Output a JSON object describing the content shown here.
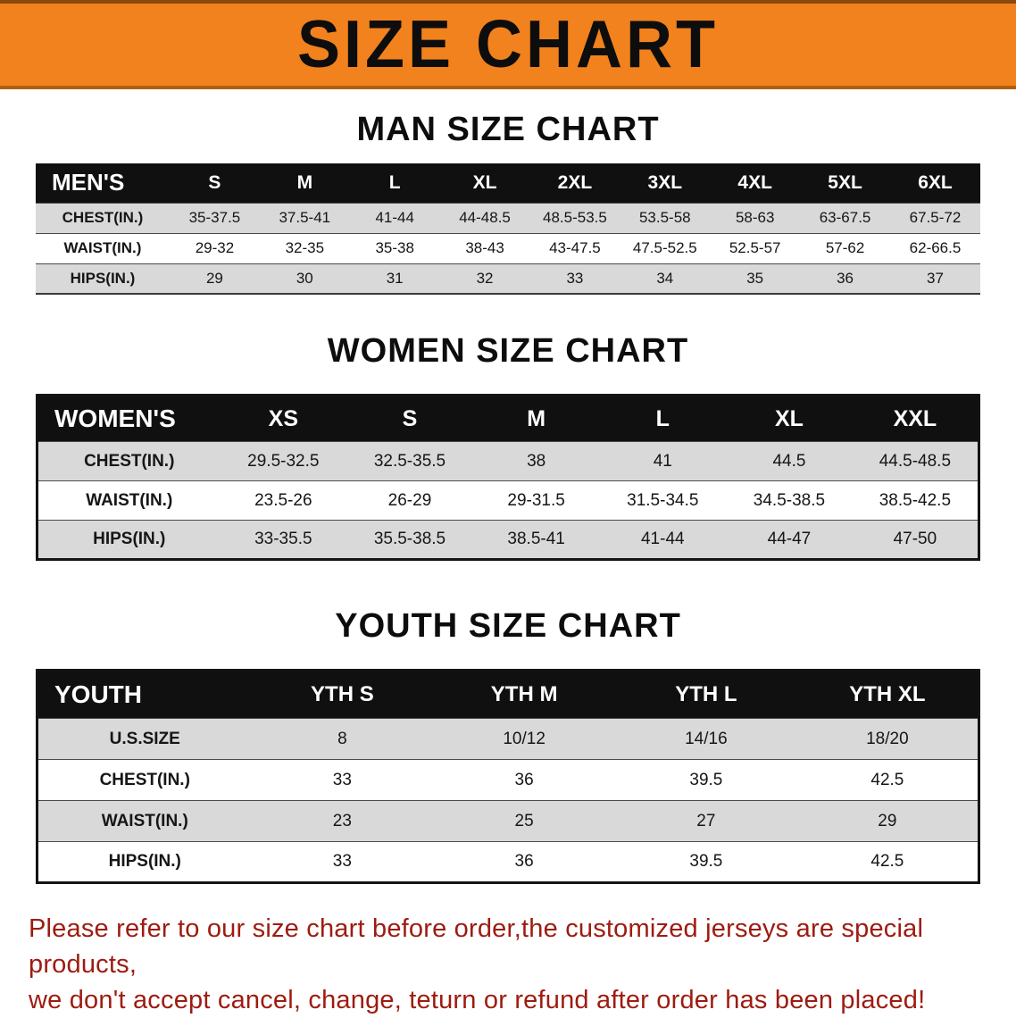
{
  "banner": {
    "title": "SIZE CHART"
  },
  "colors": {
    "banner_bg": "#f2821d",
    "header_bg": "#101010",
    "row_alt": "#d9d9d9",
    "footer_text": "#9e1b10"
  },
  "sections": [
    {
      "id": "men",
      "heading": "MAN SIZE CHART",
      "corner_label": "MEN'S",
      "columns": [
        "S",
        "M",
        "L",
        "XL",
        "2XL",
        "3XL",
        "4XL",
        "5XL",
        "6XL"
      ],
      "rows": [
        {
          "label": "CHEST(IN.)",
          "values": [
            "35-37.5",
            "37.5-41",
            "41-44",
            "44-48.5",
            "48.5-53.5",
            "53.5-58",
            "58-63",
            "63-67.5",
            "67.5-72"
          ]
        },
        {
          "label": "WAIST(IN.)",
          "values": [
            "29-32",
            "32-35",
            "35-38",
            "38-43",
            "43-47.5",
            "47.5-52.5",
            "52.5-57",
            "57-62",
            "62-66.5"
          ]
        },
        {
          "label": "HIPS(IN.)",
          "values": [
            "29",
            "30",
            "31",
            "32",
            "33",
            "34",
            "35",
            "36",
            "37"
          ]
        }
      ]
    },
    {
      "id": "women",
      "heading": "WOMEN SIZE CHART",
      "corner_label": "WOMEN'S",
      "columns": [
        "XS",
        "S",
        "M",
        "L",
        "XL",
        "XXL"
      ],
      "rows": [
        {
          "label": "CHEST(IN.)",
          "values": [
            "29.5-32.5",
            "32.5-35.5",
            "38",
            "41",
            "44.5",
            "44.5-48.5"
          ]
        },
        {
          "label": "WAIST(IN.)",
          "values": [
            "23.5-26",
            "26-29",
            "29-31.5",
            "31.5-34.5",
            "34.5-38.5",
            "38.5-42.5"
          ]
        },
        {
          "label": "HIPS(IN.)",
          "values": [
            "33-35.5",
            "35.5-38.5",
            "38.5-41",
            "41-44",
            "44-47",
            "47-50"
          ]
        }
      ]
    },
    {
      "id": "youth",
      "heading": "YOUTH SIZE CHART",
      "corner_label": "YOUTH",
      "columns": [
        "YTH S",
        "YTH M",
        "YTH L",
        "YTH XL"
      ],
      "rows": [
        {
          "label": "U.S.SIZE",
          "values": [
            "8",
            "10/12",
            "14/16",
            "18/20"
          ]
        },
        {
          "label": "CHEST(IN.)",
          "values": [
            "33",
            "36",
            "39.5",
            "42.5"
          ]
        },
        {
          "label": "WAIST(IN.)",
          "values": [
            "23",
            "25",
            "27",
            "29"
          ]
        },
        {
          "label": "HIPS(IN.)",
          "values": [
            "33",
            "36",
            "39.5",
            "42.5"
          ]
        }
      ]
    }
  ],
  "footer": {
    "lines": [
      "Please refer to our size chart before order,the customized jerseys are special products,",
      "we don't accept cancel, change, teturn or refund after order has been placed!"
    ]
  }
}
